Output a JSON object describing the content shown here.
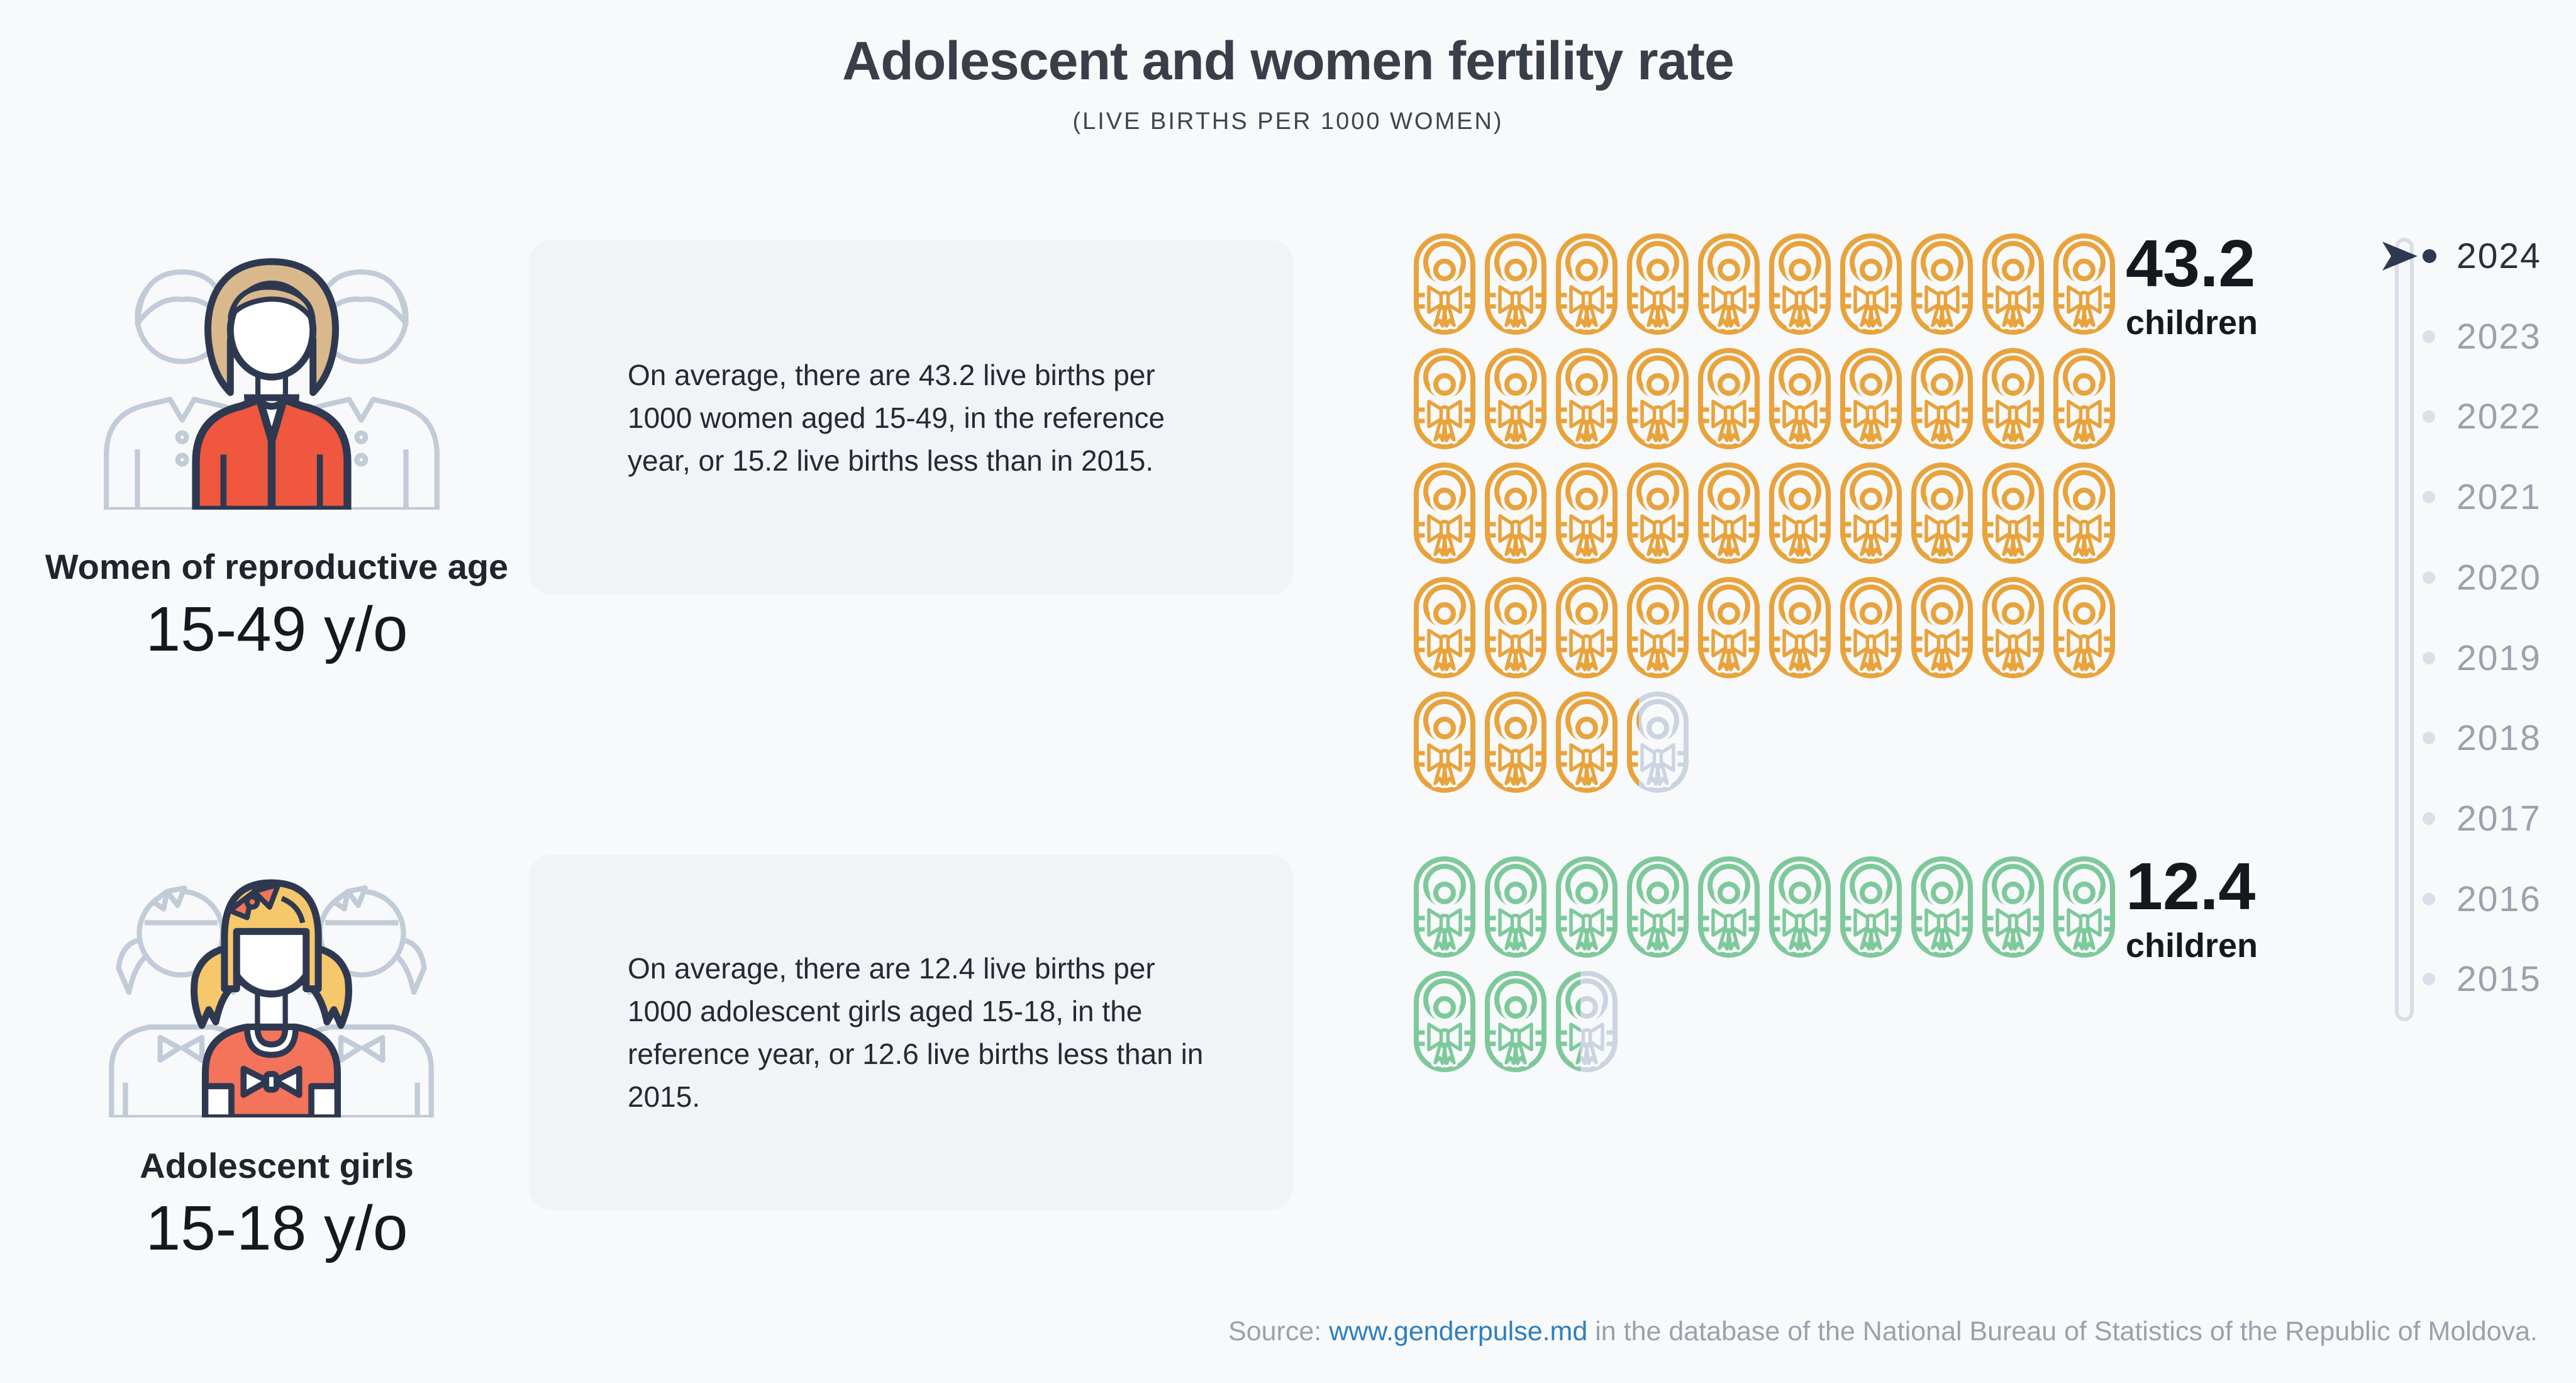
{
  "header": {
    "title": "Adolescent and women fertility rate",
    "subtitle": "(LIVE BIRTHS PER 1000 WOMEN)"
  },
  "groups": [
    {
      "id": "women",
      "label": "Women of reproductive age",
      "age_range": "15-49 y/o",
      "description": "On average, there are 43.2 live births per 1000 women aged 15-49, in the reference year, or 15.2 live births less than in 2015.",
      "value": 43.2,
      "value_label": "43.2",
      "unit": "children",
      "icon_color": "#E8A33C",
      "icons_per_row": 10
    },
    {
      "id": "girls",
      "label": "Adolescent girls",
      "age_range": "15-18 y/o",
      "description": "On average, there are 12.4 live births per 1000 adolescent girls aged 15-18, in the reference year, or 12.6 live births less than in 2015.",
      "value": 12.4,
      "value_label": "12.4",
      "unit": "children",
      "icon_color": "#7EC99B",
      "icons_per_row": 10
    }
  ],
  "icons": {
    "pictogram_icon": "swaddled-baby-icon",
    "unit_per_icon": 1,
    "remainder_color": "#CBD4E0"
  },
  "timeline": {
    "years": [
      "2024",
      "2023",
      "2022",
      "2021",
      "2020",
      "2019",
      "2018",
      "2017",
      "2016",
      "2015"
    ],
    "selected_year": "2024",
    "selected_color": "#2E3951",
    "unselected_color": "#99A2AD"
  },
  "footer": {
    "source_prefix": "Source: ",
    "source_link": "www.genderpulse.md",
    "source_suffix": " in the database of the National Bureau of Statistics of the Republic of Moldova."
  },
  "chart_data": {
    "type": "pictogram",
    "title": "Adolescent and women fertility rate",
    "subtitle": "(LIVE BIRTHS PER 1000 WOMEN)",
    "unit": "live births per 1000 women",
    "categories": [
      "Women of reproductive age 15-49 y/o",
      "Adolescent girls 15-18 y/o"
    ],
    "values": [
      43.2,
      12.4
    ],
    "change_vs_2015": [
      -15.2,
      -12.6
    ],
    "icons_per_row": 10,
    "value_per_icon": 1,
    "series_colors": [
      "#E8A33C",
      "#7EC99B"
    ],
    "timeline_years": [
      2024,
      2023,
      2022,
      2021,
      2020,
      2019,
      2018,
      2017,
      2016,
      2015
    ],
    "selected_year": 2024,
    "legend_position": "right-of-grid"
  }
}
